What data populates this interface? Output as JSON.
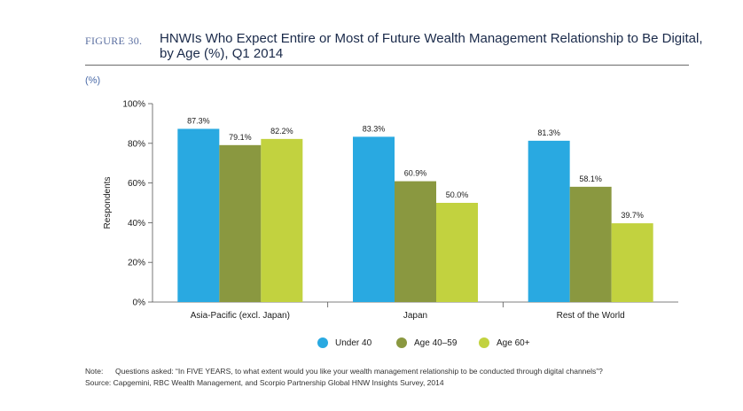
{
  "figure": {
    "label": "FIGURE 30.",
    "title": "HNWIs Who Expect Entire or Most of Future Wealth Management Relationship to Be Digital, by Age (%), Q1 2014",
    "unit_label": "(%)"
  },
  "chart_data": {
    "type": "bar",
    "categories": [
      "Asia-Pacific (excl. Japan)",
      "Japan",
      "Rest of the World"
    ],
    "series": [
      {
        "name": "Under 40",
        "values": [
          87.3,
          83.3,
          81.3
        ],
        "labels": [
          "87.3%",
          "83.3%",
          "81.3%"
        ],
        "color": "#29a9e1"
      },
      {
        "name": "Age 40–59",
        "values": [
          79.1,
          60.9,
          58.1
        ],
        "labels": [
          "79.1%",
          "60.9%",
          "58.1%"
        ],
        "color": "#8a9840"
      },
      {
        "name": "Age 60+",
        "values": [
          82.2,
          50.0,
          39.7
        ],
        "labels": [
          "82.2%",
          "50.0%",
          "39.7%"
        ],
        "color": "#c2d23f"
      }
    ],
    "ylabel": "Respondents",
    "ylim": [
      0,
      100
    ],
    "yticks": [
      0,
      20,
      40,
      60,
      80,
      100
    ],
    "ytick_labels": [
      "0%",
      "20%",
      "40%",
      "60%",
      "80%",
      "100%"
    ],
    "grid": false,
    "legend_position": "bottom"
  },
  "notes": {
    "note_label": "Note:",
    "note_text": "Questions asked: “In FIVE YEARS, to what extent would you like your wealth management relationship to be conducted through digital channels”?",
    "source_text": "Source: Capgemini, RBC Wealth Management, and Scorpio Partnership Global HNW Insights Survey, 2014"
  }
}
